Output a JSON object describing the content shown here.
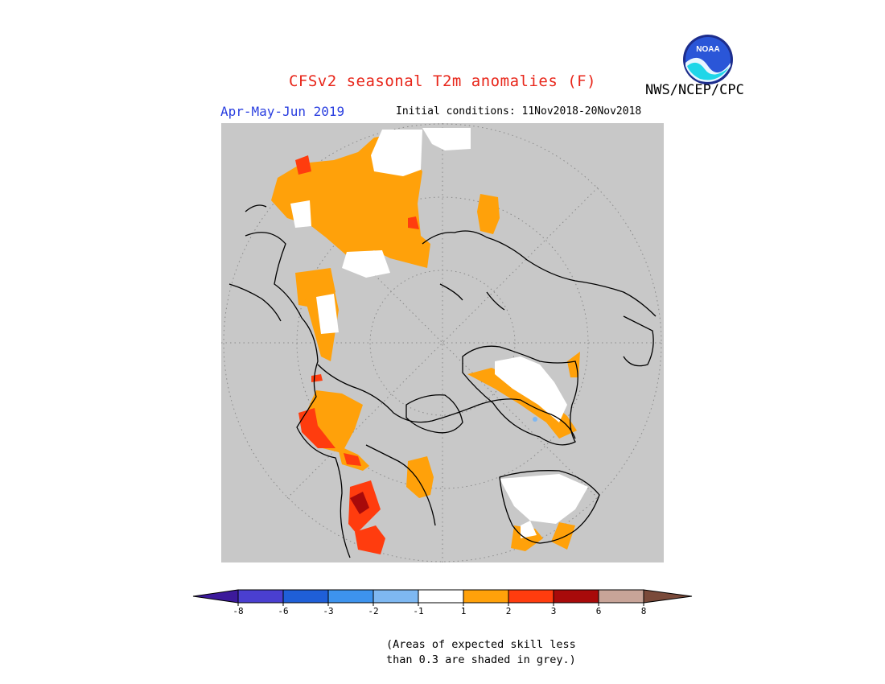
{
  "header": {
    "title": "CFSv2 seasonal T2m anomalies (F)",
    "period": "Apr-May-Jun 2019",
    "initial_conditions": "Initial conditions: 11Nov2018-20Nov2018",
    "agency": "NWS/NCEP/CPC",
    "logo_text": "NOAA"
  },
  "colors": {
    "title": "#e8261a",
    "period": "#2a3fe0",
    "skill_mask": "#c8c8c8",
    "near_normal": "#ffffff"
  },
  "legend": {
    "bins": [
      {
        "color": "#3c1a9b"
      },
      {
        "color": "#4a3fd0"
      },
      {
        "color": "#1f5fd8"
      },
      {
        "color": "#3d93ee"
      },
      {
        "color": "#7eb8f2"
      },
      {
        "color": "#ffffff"
      },
      {
        "color": "#ffa10a"
      },
      {
        "color": "#ff3c0e"
      },
      {
        "color": "#a80a0a"
      },
      {
        "color": "#c8a498"
      },
      {
        "color": "#7a4a3a"
      }
    ],
    "ticks": [
      "-8",
      "-6",
      "-3",
      "-2",
      "-1",
      "1",
      "2",
      "3",
      "6",
      "8"
    ]
  },
  "note": {
    "line1": "(Areas of expected skill less",
    "line2": "than 0.3 are shaded in grey.)"
  },
  "map": {
    "projection": "north polar stereographic",
    "background": "#c8c8c8"
  }
}
